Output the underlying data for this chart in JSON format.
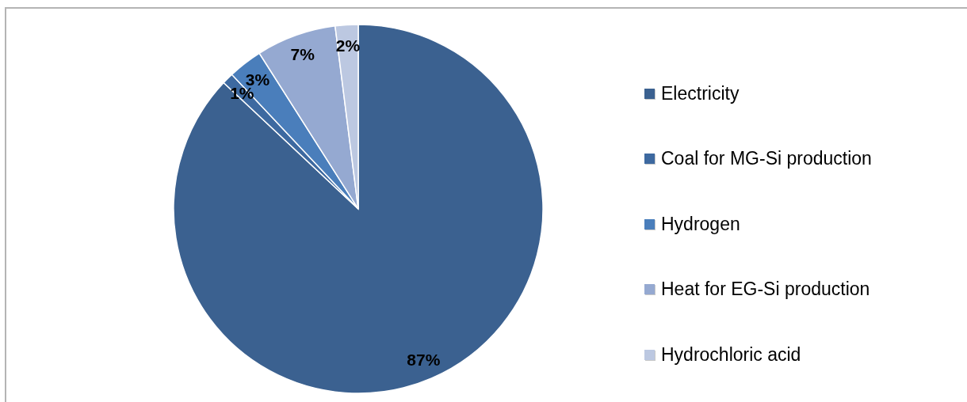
{
  "chart_data": {
    "type": "pie",
    "categories": [
      "Electricity",
      "Coal for MG-Si production",
      "Hydrogen",
      "Heat for EG-Si production",
      "Hydrochloric acid"
    ],
    "values": [
      87,
      1,
      3,
      7,
      2
    ],
    "colors": [
      "#3b6190",
      "#3d69a0",
      "#4a7ebb",
      "#95a9d1",
      "#bcc8e1"
    ],
    "value_labels": [
      "87%",
      "1%",
      "3%",
      "7%",
      "2%"
    ],
    "legend": "right"
  }
}
